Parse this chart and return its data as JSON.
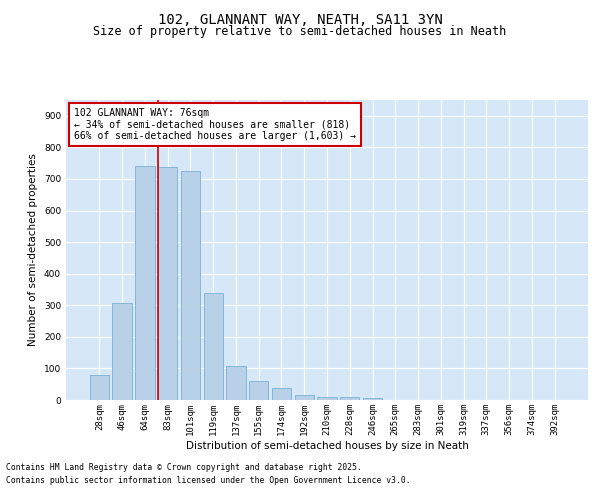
{
  "title": "102, GLANNANT WAY, NEATH, SA11 3YN",
  "subtitle": "Size of property relative to semi-detached houses in Neath",
  "xlabel": "Distribution of semi-detached houses by size in Neath",
  "ylabel": "Number of semi-detached properties",
  "categories": [
    "28sqm",
    "46sqm",
    "64sqm",
    "83sqm",
    "101sqm",
    "119sqm",
    "137sqm",
    "155sqm",
    "174sqm",
    "192sqm",
    "210sqm",
    "228sqm",
    "246sqm",
    "265sqm",
    "283sqm",
    "301sqm",
    "319sqm",
    "337sqm",
    "356sqm",
    "374sqm",
    "392sqm"
  ],
  "values": [
    80,
    308,
    740,
    738,
    725,
    340,
    108,
    60,
    38,
    15,
    10,
    8,
    5,
    0,
    0,
    0,
    0,
    0,
    0,
    0,
    0
  ],
  "bar_color": "#b8d0e8",
  "bar_edge_color": "#7aafd4",
  "plot_bg_color": "#d6e8f7",
  "fig_bg_color": "#ffffff",
  "grid_color": "#ffffff",
  "annotation_box_facecolor": "#ffffff",
  "annotation_box_edgecolor": "#cc0000",
  "vline_color": "#cc0000",
  "vline_x": 2.57,
  "ylim": [
    0,
    950
  ],
  "yticks": [
    0,
    100,
    200,
    300,
    400,
    500,
    600,
    700,
    800,
    900
  ],
  "annotation_title": "102 GLANNANT WAY: 76sqm",
  "annotation_line1": "← 34% of semi-detached houses are smaller (818)",
  "annotation_line2": "66% of semi-detached houses are larger (1,603) →",
  "footnote1": "Contains HM Land Registry data © Crown copyright and database right 2025.",
  "footnote2": "Contains public sector information licensed under the Open Government Licence v3.0.",
  "title_fontsize": 10,
  "subtitle_fontsize": 8.5,
  "axis_label_fontsize": 7.5,
  "tick_fontsize": 6.5,
  "annotation_fontsize": 7,
  "footnote_fontsize": 5.8
}
